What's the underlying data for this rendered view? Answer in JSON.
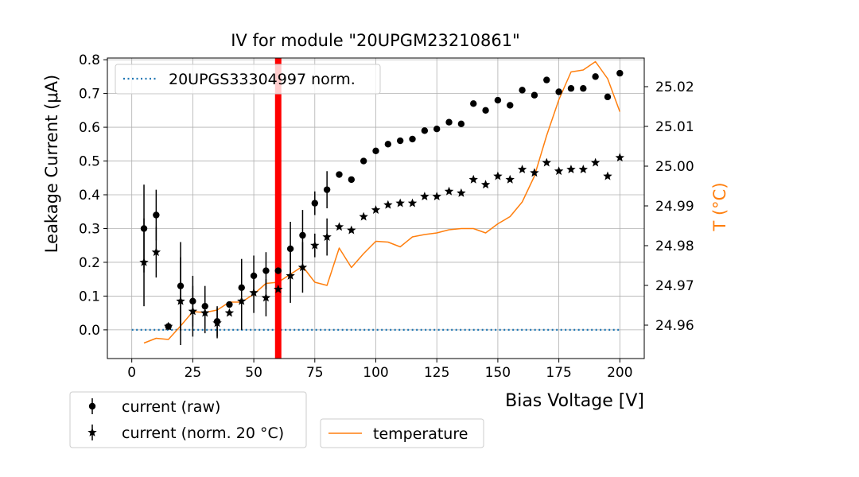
{
  "chart_data": {
    "type": "scatter",
    "title": "IV for module \"20UPGM23210861\"",
    "xlabel": "Bias Voltage [V]",
    "ylabel": "Leakage Current (μA)",
    "y2label": "T (°C)",
    "xlim": [
      -10,
      210
    ],
    "ylim": [
      -0.085,
      0.805
    ],
    "y2lim": [
      24.9516,
      25.0272
    ],
    "x_ticks": [
      "0",
      "25",
      "50",
      "75",
      "100",
      "125",
      "150",
      "175",
      "200"
    ],
    "y_ticks": [
      "0.0",
      "0.1",
      "0.2",
      "0.3",
      "0.4",
      "0.5",
      "0.6",
      "0.7",
      "0.8"
    ],
    "y2_ticks": [
      "24.96",
      "24.97",
      "24.98",
      "24.99",
      "25.00",
      "25.01",
      "25.02"
    ],
    "grid": true,
    "vline": {
      "x": 60,
      "color": "#ff0000"
    },
    "colors": {
      "temperature": "#ff7f0e",
      "reference": "#1f77b4",
      "points": "#000000"
    },
    "series": [
      {
        "name": "current (raw)",
        "marker": "circle",
        "x": [
          5,
          10,
          15,
          20,
          25,
          30,
          35,
          40,
          45,
          50,
          55,
          60,
          65,
          70,
          75,
          80,
          85,
          90,
          95,
          100,
          105,
          110,
          115,
          120,
          125,
          130,
          135,
          140,
          145,
          150,
          155,
          160,
          165,
          170,
          175,
          180,
          185,
          190,
          195,
          200
        ],
        "y": [
          0.3,
          0.34,
          0.01,
          0.13,
          0.085,
          0.07,
          0.025,
          0.075,
          0.125,
          0.16,
          0.175,
          0.175,
          0.24,
          0.28,
          0.375,
          0.415,
          0.46,
          0.445,
          0.5,
          0.53,
          0.55,
          0.56,
          0.565,
          0.59,
          0.595,
          0.615,
          0.61,
          0.67,
          0.65,
          0.68,
          0.665,
          0.71,
          0.695,
          0.74,
          0.705,
          0.715,
          0.715,
          0.75,
          0.69,
          0.76
        ],
        "err": [
          0.13,
          0.075,
          0.0,
          0.13,
          0.075,
          0.06,
          0.045,
          0.0,
          0.085,
          0.06,
          0.055,
          0.0,
          0.08,
          0.075,
          0.035,
          0.055,
          0,
          0,
          0,
          0,
          0,
          0,
          0,
          0,
          0,
          0,
          0,
          0,
          0,
          0,
          0,
          0,
          0,
          0,
          0,
          0,
          0,
          0,
          0,
          0
        ]
      },
      {
        "name": "current (norm. 20 °C)",
        "marker": "star",
        "x": [
          5,
          10,
          15,
          20,
          25,
          30,
          35,
          40,
          45,
          50,
          55,
          60,
          65,
          70,
          75,
          80,
          85,
          90,
          95,
          100,
          105,
          110,
          115,
          120,
          125,
          130,
          135,
          140,
          145,
          150,
          155,
          160,
          165,
          170,
          175,
          180,
          185,
          190,
          195,
          200
        ],
        "y": [
          0.2,
          0.23,
          0.01,
          0.085,
          0.055,
          0.05,
          0.02,
          0.05,
          0.085,
          0.11,
          0.095,
          0.12,
          0.16,
          0.185,
          0.25,
          0.275,
          0.305,
          0.295,
          0.335,
          0.355,
          0.37,
          0.375,
          0.375,
          0.395,
          0.395,
          0.41,
          0.405,
          0.445,
          0.43,
          0.455,
          0.445,
          0.475,
          0.465,
          0.495,
          0.47,
          0.475,
          0.475,
          0.495,
          0.455,
          0.51
        ],
        "err": [
          0.13,
          0.075,
          0.0,
          0.13,
          0.075,
          0.06,
          0.045,
          0.0,
          0.085,
          0.06,
          0.055,
          0.0,
          0.08,
          0.075,
          0.035,
          0.055,
          0,
          0,
          0,
          0,
          0,
          0,
          0,
          0,
          0,
          0,
          0,
          0,
          0,
          0,
          0,
          0,
          0,
          0,
          0,
          0,
          0,
          0,
          0,
          0
        ]
      },
      {
        "name": "20UPGS33304997 norm.",
        "style": "dotted",
        "x": [
          0,
          200
        ],
        "y": [
          0.0,
          0.0
        ]
      },
      {
        "name": "temperature",
        "axis": "y2",
        "style": "line",
        "x": [
          5,
          10,
          15,
          20,
          25,
          30,
          35,
          40,
          45,
          50,
          55,
          60,
          65,
          70,
          75,
          80,
          85,
          90,
          95,
          100,
          105,
          110,
          115,
          120,
          125,
          130,
          135,
          140,
          145,
          150,
          155,
          160,
          165,
          170,
          175,
          180,
          185,
          190,
          195,
          200
        ],
        "y": [
          24.9555,
          24.9567,
          24.9564,
          24.9598,
          24.9634,
          24.9632,
          24.9638,
          24.9658,
          24.9658,
          24.9678,
          24.9705,
          24.9708,
          24.9728,
          24.9748,
          24.9708,
          24.97,
          24.9794,
          24.9745,
          24.978,
          24.9811,
          24.9809,
          24.9797,
          24.9822,
          24.9828,
          24.9832,
          24.984,
          24.9843,
          24.9843,
          24.9832,
          24.9855,
          24.9873,
          24.991,
          24.9975,
          25.0077,
          25.0167,
          25.0237,
          25.0242,
          25.0263,
          25.022,
          25.0137
        ]
      }
    ],
    "legends": {
      "main": [
        "20UPGS33304997 norm."
      ],
      "bottom_left": [
        "current (raw)",
        "current (norm. 20 °C)"
      ],
      "bottom_right": [
        "temperature"
      ]
    }
  }
}
